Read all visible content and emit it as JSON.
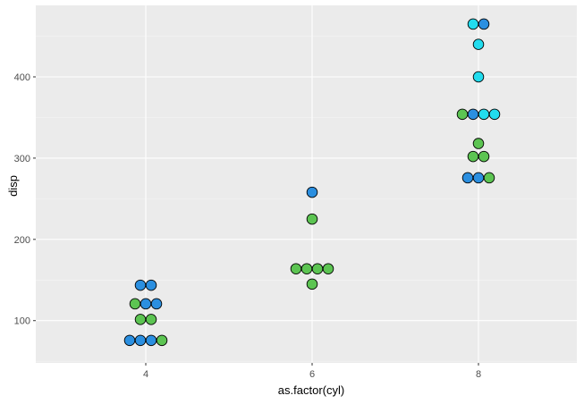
{
  "chart_data": {
    "type": "scatter",
    "subtype": "dotplot",
    "title": "",
    "xlabel": "as.factor(cyl)",
    "ylabel": "disp",
    "categories": [
      "4",
      "6",
      "8"
    ],
    "y_ticks": [
      100,
      200,
      300,
      400
    ],
    "ylim": [
      48,
      488
    ],
    "grid": true,
    "legend": "none",
    "colors": {
      "panel_bg": "#ebebeb",
      "grid_major": "#ffffff",
      "grid_minor": "#f5f5f5",
      "point_outline": "#000000",
      "blue": "#2b8fe0",
      "green": "#5cc452",
      "cyan": "#22dcee"
    },
    "points": [
      {
        "x": "4",
        "y": 75.7,
        "color": "blue"
      },
      {
        "x": "4",
        "y": 75.7,
        "color": "blue"
      },
      {
        "x": "4",
        "y": 75.7,
        "color": "blue"
      },
      {
        "x": "4",
        "y": 75.7,
        "color": "green"
      },
      {
        "x": "4",
        "y": 101.5,
        "color": "green"
      },
      {
        "x": "4",
        "y": 101.5,
        "color": "green"
      },
      {
        "x": "4",
        "y": 120.7,
        "color": "green"
      },
      {
        "x": "4",
        "y": 120.7,
        "color": "blue"
      },
      {
        "x": "4",
        "y": 120.7,
        "color": "blue"
      },
      {
        "x": "4",
        "y": 143.6,
        "color": "blue"
      },
      {
        "x": "4",
        "y": 143.6,
        "color": "blue"
      },
      {
        "x": "6",
        "y": 145.0,
        "color": "green"
      },
      {
        "x": "6",
        "y": 163.8,
        "color": "green"
      },
      {
        "x": "6",
        "y": 163.8,
        "color": "green"
      },
      {
        "x": "6",
        "y": 163.8,
        "color": "green"
      },
      {
        "x": "6",
        "y": 163.8,
        "color": "green"
      },
      {
        "x": "6",
        "y": 225.0,
        "color": "green"
      },
      {
        "x": "6",
        "y": 258.0,
        "color": "blue"
      },
      {
        "x": "8",
        "y": 275.8,
        "color": "blue"
      },
      {
        "x": "8",
        "y": 275.8,
        "color": "blue"
      },
      {
        "x": "8",
        "y": 275.8,
        "color": "green"
      },
      {
        "x": "8",
        "y": 302.0,
        "color": "green"
      },
      {
        "x": "8",
        "y": 302.0,
        "color": "green"
      },
      {
        "x": "8",
        "y": 318.0,
        "color": "green"
      },
      {
        "x": "8",
        "y": 354.0,
        "color": "green"
      },
      {
        "x": "8",
        "y": 354.0,
        "color": "blue"
      },
      {
        "x": "8",
        "y": 354.0,
        "color": "cyan"
      },
      {
        "x": "8",
        "y": 354.0,
        "color": "cyan"
      },
      {
        "x": "8",
        "y": 400.0,
        "color": "cyan"
      },
      {
        "x": "8",
        "y": 440.0,
        "color": "cyan"
      },
      {
        "x": "8",
        "y": 465.0,
        "color": "cyan"
      },
      {
        "x": "8",
        "y": 465.0,
        "color": "blue"
      }
    ]
  }
}
